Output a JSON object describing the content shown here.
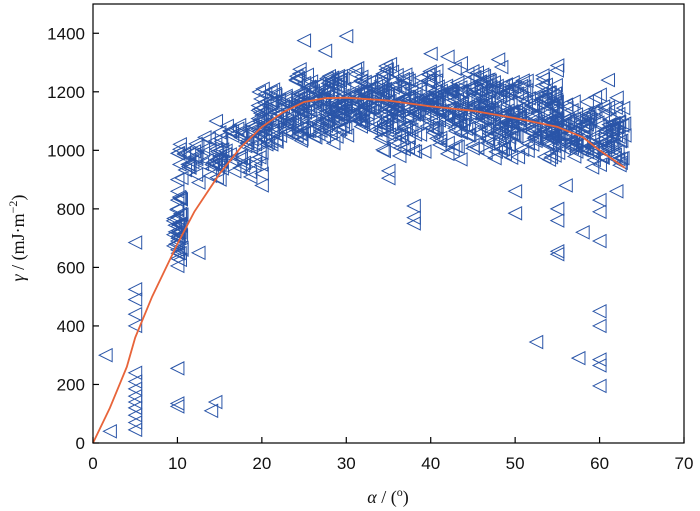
{
  "chart_data": {
    "type": "scatter",
    "xlabel": {
      "symbol": "α",
      "rest": " / (",
      "unit_sup": "o",
      "close": ")"
    },
    "ylabel": {
      "symbol": "γ",
      "rest": " / (mJ·m",
      "unit_sup": "−2",
      "close": ")"
    },
    "xlim": [
      0,
      70
    ],
    "ylim": [
      0,
      1500
    ],
    "xticks": [
      0,
      10,
      20,
      30,
      40,
      50,
      60,
      70
    ],
    "yticks": [
      0,
      200,
      400,
      600,
      800,
      1000,
      1200,
      1400
    ],
    "grid": false,
    "legend": "none",
    "marker": "left-pointing open triangle",
    "colors": {
      "points": "#2a55a8",
      "fit": "#e8643a"
    },
    "series": [
      {
        "type": "scatter",
        "outliers": [
          [
            1.5,
            300
          ],
          [
            2,
            40
          ],
          [
            5,
            685
          ],
          [
            5,
            525
          ],
          [
            5,
            490
          ],
          [
            5,
            440
          ],
          [
            5,
            400
          ],
          [
            5,
            240
          ],
          [
            5,
            210
          ],
          [
            5,
            185
          ],
          [
            5,
            160
          ],
          [
            5,
            140
          ],
          [
            5,
            120
          ],
          [
            5,
            95
          ],
          [
            5,
            70
          ],
          [
            5,
            45
          ],
          [
            10,
            990
          ],
          [
            10,
            900
          ],
          [
            10,
            860
          ],
          [
            10,
            830
          ],
          [
            10,
            800
          ],
          [
            10,
            770
          ],
          [
            10,
            740
          ],
          [
            10,
            720
          ],
          [
            10,
            690
          ],
          [
            10,
            660
          ],
          [
            10,
            630
          ],
          [
            10,
            605
          ],
          [
            10,
            255
          ],
          [
            10,
            135
          ],
          [
            10,
            125
          ],
          [
            12.5,
            650
          ],
          [
            12.5,
            890
          ],
          [
            14,
            110
          ],
          [
            14.5,
            140
          ],
          [
            15,
            900
          ],
          [
            15,
            950
          ],
          [
            15,
            1000
          ],
          [
            20,
            1120
          ],
          [
            20,
            1145
          ],
          [
            20,
            920
          ],
          [
            20,
            880
          ],
          [
            25,
            1375
          ],
          [
            27.5,
            1340
          ],
          [
            30,
            1390
          ],
          [
            35,
            930
          ],
          [
            35,
            905
          ],
          [
            38,
            810
          ],
          [
            38,
            770
          ],
          [
            38,
            750
          ],
          [
            40,
            1330
          ],
          [
            42,
            1320
          ],
          [
            48,
            1310
          ],
          [
            50,
            860
          ],
          [
            50,
            785
          ],
          [
            52.5,
            345
          ],
          [
            55,
            1290
          ],
          [
            55,
            800
          ],
          [
            55,
            760
          ],
          [
            55,
            655
          ],
          [
            55,
            645
          ],
          [
            56,
            880
          ],
          [
            57.5,
            290
          ],
          [
            58,
            720
          ],
          [
            60,
            830
          ],
          [
            60,
            790
          ],
          [
            60,
            690
          ],
          [
            60,
            450
          ],
          [
            60,
            400
          ],
          [
            60,
            285
          ],
          [
            60,
            265
          ],
          [
            60,
            195
          ],
          [
            61,
            1240
          ],
          [
            62,
            860
          ],
          [
            62,
            1080
          ]
        ],
        "clusters": [
          {
            "x_min": 9.5,
            "x_max": 10.5,
            "y_min": 600,
            "y_max": 900,
            "n": 30
          },
          {
            "x_min": 10,
            "x_max": 15,
            "y_min": 880,
            "y_max": 1060,
            "n": 35
          },
          {
            "x_min": 14.5,
            "x_max": 20,
            "y_min": 900,
            "y_max": 1120,
            "n": 60
          },
          {
            "x_min": 19.5,
            "x_max": 25,
            "y_min": 1000,
            "y_max": 1240,
            "n": 90
          },
          {
            "x_min": 24,
            "x_max": 35,
            "y_min": 1020,
            "y_max": 1300,
            "n": 220
          },
          {
            "x_min": 34,
            "x_max": 47,
            "y_min": 960,
            "y_max": 1320,
            "n": 280
          },
          {
            "x_min": 46,
            "x_max": 55,
            "y_min": 940,
            "y_max": 1300,
            "n": 200
          },
          {
            "x_min": 54,
            "x_max": 63,
            "y_min": 930,
            "y_max": 1200,
            "n": 150
          }
        ]
      },
      {
        "type": "line",
        "fit_curve": [
          [
            0,
            0
          ],
          [
            2,
            120
          ],
          [
            4,
            260
          ],
          [
            5,
            360
          ],
          [
            7,
            500
          ],
          [
            10,
            680
          ],
          [
            12,
            790
          ],
          [
            15,
            920
          ],
          [
            17.5,
            1010
          ],
          [
            20,
            1080
          ],
          [
            22.5,
            1130
          ],
          [
            25,
            1165
          ],
          [
            27.5,
            1178
          ],
          [
            30,
            1180
          ],
          [
            35,
            1170
          ],
          [
            40,
            1150
          ],
          [
            45,
            1135
          ],
          [
            50,
            1110
          ],
          [
            55,
            1080
          ],
          [
            58,
            1045
          ],
          [
            60,
            1000
          ],
          [
            62,
            960
          ],
          [
            63,
            940
          ]
        ]
      }
    ]
  }
}
